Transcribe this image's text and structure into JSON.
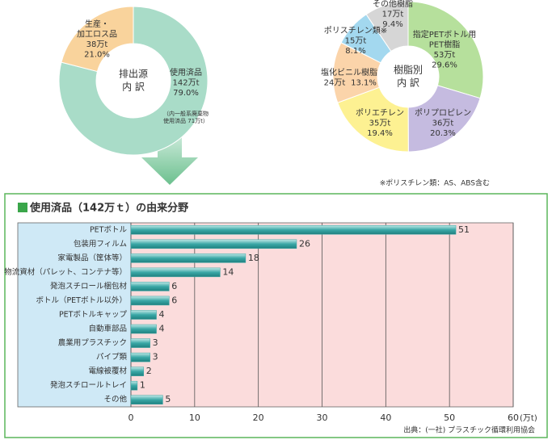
{
  "chart_data": [
    {
      "type": "donut",
      "center_label": [
        "排出源",
        "内 訳"
      ],
      "categories": [
        [
          "使用済品"
        ],
        [
          "生産・",
          "加工ロス品"
        ]
      ],
      "values": [
        79.0,
        21.0
      ],
      "value_labels": [
        "79.0%",
        "21.0%"
      ],
      "amounts": [
        142,
        38
      ],
      "amount_labels": [
        "142万t",
        "38万t"
      ],
      "colors": [
        "#a9dcc8",
        "#f9d39c"
      ],
      "note": [
        "（内一般系廃棄物",
        "使用済品 71万t）"
      ]
    },
    {
      "type": "donut",
      "center_label": [
        "樹脂別",
        "内 訳"
      ],
      "categories": [
        [
          "指定PETボトル用",
          "PET樹脂"
        ],
        [
          "ポリプロピレン"
        ],
        [
          "ポリエチレン"
        ],
        [
          "塩化ビニル樹脂"
        ],
        [
          "ポリスチレン類※"
        ],
        [
          "その他樹脂"
        ]
      ],
      "values": [
        29.6,
        20.3,
        19.4,
        13.1,
        8.1,
        9.4
      ],
      "value_labels": [
        "29.6%",
        "20.3%",
        "19.4%",
        "13.1%",
        "8.1%",
        "9.4%"
      ],
      "amounts": [
        53,
        36,
        35,
        24,
        15,
        17
      ],
      "amount_labels": [
        "53万t",
        "36万t",
        "35万t",
        "24万t",
        "15万t",
        "17万t"
      ],
      "colors": [
        "#b6e09c",
        "#c5bbe0",
        "#fdf192",
        "#fbd4aa",
        "#a3d8ef",
        "#d6d6d6"
      ],
      "note": "※ポリスチレン類：AS、ABS含む"
    },
    {
      "type": "bar",
      "orientation": "horizontal",
      "title": "使用済品（142万ｔ）の由来分野",
      "categories": [
        "PETボトル",
        "包装用フィルム",
        "家電製品（筐体等）",
        "物流資材（パレット、コンテナ等）",
        "発泡スチロール梱包材",
        "ボトル（PETボトル以外）",
        "PETボトルキャップ",
        "自動車部品",
        "農業用プラスチック",
        "パイプ類",
        "電線被覆材",
        "発泡スチロールトレイ",
        "その他"
      ],
      "values": [
        51,
        26,
        18,
        14,
        6,
        6,
        4,
        4,
        3,
        3,
        2,
        1,
        5
      ],
      "xlim": [
        0,
        60
      ],
      "xticks": [
        0,
        10,
        20,
        30,
        40,
        50,
        60
      ],
      "x_unit": "(万t)",
      "color": "#3aa7a6",
      "grid": true,
      "source": "出典：(一社) プラスチック循環利用協会"
    }
  ]
}
